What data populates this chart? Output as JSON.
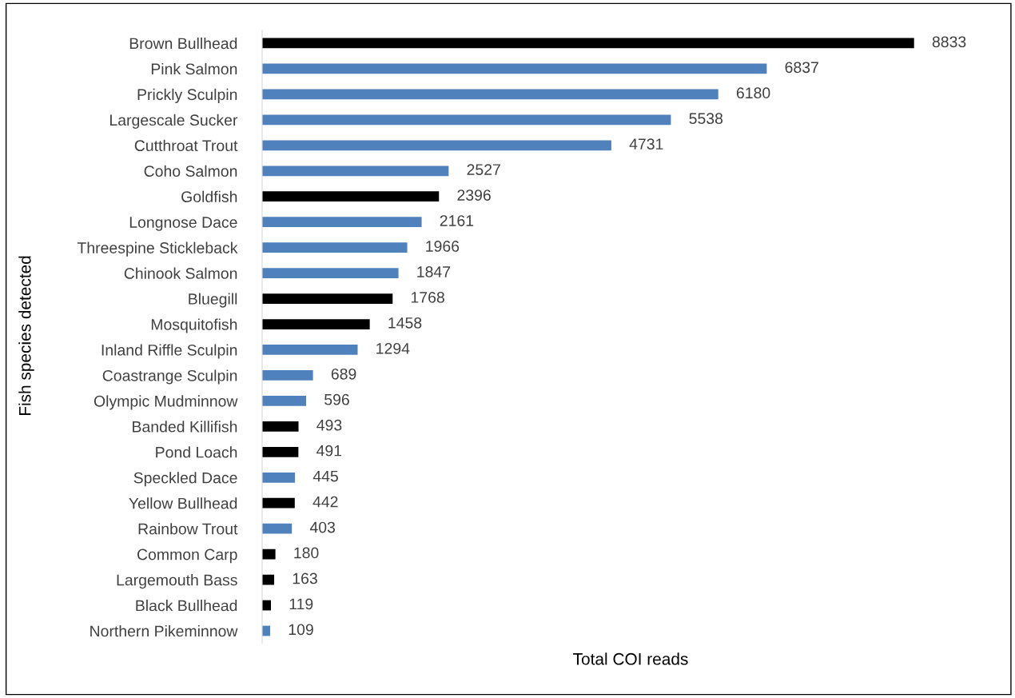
{
  "chart_data": {
    "type": "bar",
    "orientation": "horizontal",
    "data_labels": true,
    "xlabel": "Total COI reads",
    "ylabel": "Fish species detected",
    "grid": false,
    "legend": false,
    "categories": [
      "Brown Bullhead",
      "Pink Salmon",
      "Prickly Sculpin",
      "Largescale Sucker",
      "Cutthroat Trout",
      "Coho Salmon",
      "Goldfish",
      "Longnose Dace",
      "Threespine Stickleback",
      "Chinook Salmon",
      "Bluegill",
      "Mosquitofish",
      "Inland Riffle Sculpin",
      "Coastrange Sculpin",
      "Olympic Mudminnow",
      "Banded Killifish",
      "Pond Loach",
      "Speckled Dace",
      "Yellow Bullhead",
      "Rainbow Trout",
      "Common Carp",
      "Largemouth Bass",
      "Black Bullhead",
      "Northern Pikeminnow"
    ],
    "values": [
      8833,
      6837,
      6180,
      5538,
      4731,
      2527,
      2396,
      2161,
      1966,
      1847,
      1768,
      1458,
      1294,
      689,
      596,
      493,
      491,
      445,
      442,
      403,
      180,
      163,
      119,
      109
    ],
    "colors": [
      "#000000",
      "#4f81bd",
      "#4f81bd",
      "#4f81bd",
      "#4f81bd",
      "#4f81bd",
      "#000000",
      "#4f81bd",
      "#4f81bd",
      "#4f81bd",
      "#000000",
      "#000000",
      "#4f81bd",
      "#4f81bd",
      "#4f81bd",
      "#000000",
      "#000000",
      "#4f81bd",
      "#000000",
      "#4f81bd",
      "#000000",
      "#000000",
      "#000000",
      "#4f81bd"
    ]
  }
}
